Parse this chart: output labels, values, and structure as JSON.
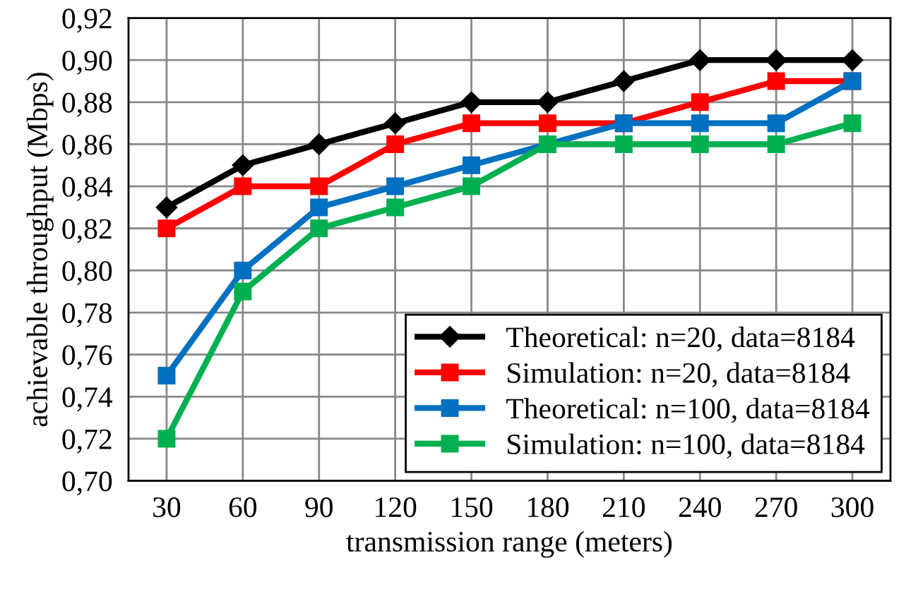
{
  "chart_data": {
    "type": "line",
    "xlabel": "transmission range (meters)",
    "ylabel": "achievable throughput (Mbps)",
    "categories": [
      "30",
      "60",
      "90",
      "120",
      "150",
      "180",
      "210",
      "240",
      "270",
      "300"
    ],
    "series": [
      {
        "name": "Theoretical: n=20, data=8184",
        "color": "#000000",
        "marker": "diamond",
        "values": [
          0.83,
          0.85,
          0.86,
          0.87,
          0.88,
          0.88,
          0.89,
          0.9,
          0.9,
          0.9
        ]
      },
      {
        "name": "Simulation: n=20, data=8184",
        "color": "#ff0000",
        "marker": "square",
        "values": [
          0.82,
          0.84,
          0.84,
          0.86,
          0.87,
          0.87,
          0.87,
          0.88,
          0.89,
          0.89
        ]
      },
      {
        "name": "Theoretical: n=100, data=8184",
        "color": "#0070c0",
        "marker": "square",
        "values": [
          0.75,
          0.8,
          0.83,
          0.84,
          0.85,
          0.86,
          0.87,
          0.87,
          0.87,
          0.89
        ]
      },
      {
        "name": "Simulation: n=100, data=8184",
        "color": "#00b050",
        "marker": "square",
        "values": [
          0.72,
          0.79,
          0.82,
          0.83,
          0.84,
          0.86,
          0.86,
          0.86,
          0.86,
          0.87
        ]
      }
    ],
    "ylim": [
      0.7,
      0.92
    ],
    "yticks": [
      {
        "value": 0.7,
        "label": "0,70"
      },
      {
        "value": 0.72,
        "label": "0,72"
      },
      {
        "value": 0.74,
        "label": "0,74"
      },
      {
        "value": 0.76,
        "label": "0,76"
      },
      {
        "value": 0.78,
        "label": "0,78"
      },
      {
        "value": 0.8,
        "label": "0,80"
      },
      {
        "value": 0.82,
        "label": "0,82"
      },
      {
        "value": 0.84,
        "label": "0,84"
      },
      {
        "value": 0.86,
        "label": "0,86"
      },
      {
        "value": 0.88,
        "label": "0,88"
      },
      {
        "value": 0.9,
        "label": "0,90"
      },
      {
        "value": 0.92,
        "label": "0,92"
      }
    ],
    "grid": true,
    "legend": "bottom right",
    "line_style": "solid"
  }
}
